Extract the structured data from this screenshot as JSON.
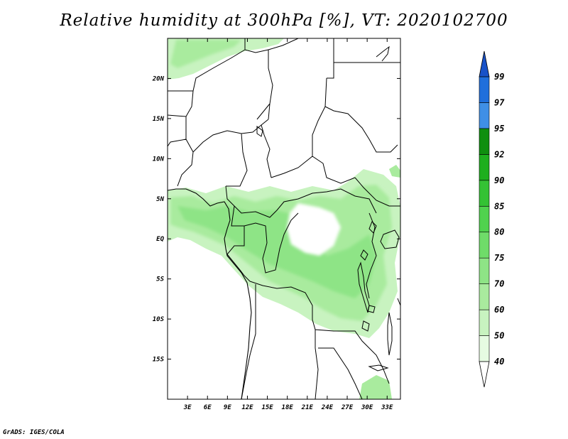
{
  "title": "Relative humidity at 300hPa [%], VT: 2020102700",
  "footer": "GrADS: IGES/COLA",
  "map": {
    "lon_range": [
      0,
      35
    ],
    "lat_range": [
      -20,
      25
    ],
    "lon_ticks": [
      "3E",
      "6E",
      "9E",
      "12E",
      "15E",
      "18E",
      "21E",
      "24E",
      "27E",
      "30E",
      "33E"
    ],
    "lon_tick_values": [
      3,
      6,
      9,
      12,
      15,
      18,
      21,
      24,
      27,
      30,
      33
    ],
    "lat_ticks": [
      "20N",
      "15N",
      "10N",
      "5N",
      "EQ",
      "5S",
      "10S",
      "15S"
    ],
    "lat_tick_values": [
      20,
      15,
      10,
      5,
      0,
      -5,
      -10,
      -15
    ]
  },
  "colorbar": {
    "levels": [
      "40",
      "50",
      "60",
      "70",
      "75",
      "80",
      "85",
      "90",
      "92",
      "95",
      "97",
      "99"
    ],
    "colors": [
      "#ffffff",
      "#e6fbe2",
      "#c8f3c0",
      "#a9eb9e",
      "#8ee486",
      "#6fdc69",
      "#50d24e",
      "#34c234",
      "#1eaf1e",
      "#0f8f0f",
      "#3f8fe6",
      "#1f6fdc",
      "#1852c8"
    ]
  }
}
